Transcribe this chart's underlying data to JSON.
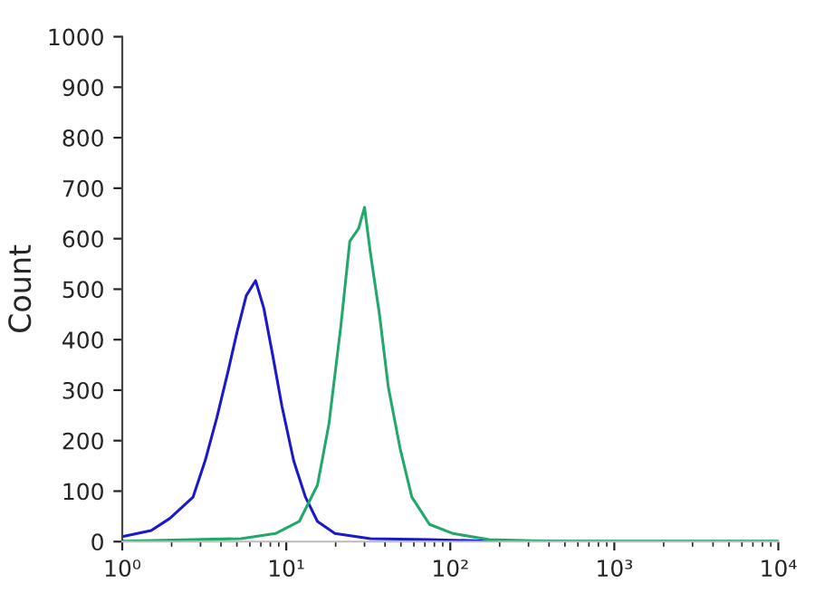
{
  "chart_data": {
    "type": "line",
    "ylabel": "Count",
    "log": "x",
    "grid": false,
    "legend": false,
    "marker": "none",
    "line_style": "solid",
    "xlim": [
      1,
      10000
    ],
    "ylim": [
      0,
      1000
    ],
    "xticks": [
      {
        "value": 1,
        "label": "10⁰"
      },
      {
        "value": 10,
        "label": "10¹"
      },
      {
        "value": 100,
        "label": "10²"
      },
      {
        "value": 1000,
        "label": "10³"
      },
      {
        "value": 10000,
        "label": "10⁴"
      }
    ],
    "yticks": [
      0,
      100,
      200,
      300,
      400,
      500,
      600,
      700,
      800,
      900,
      1000
    ],
    "series": [
      {
        "color": "#1a1acc",
        "x": [
          1,
          1.5,
          1.95,
          2.7,
          3.2,
          3.77,
          4.45,
          5.0,
          5.7,
          6.5,
          7.3,
          8.3,
          9.4,
          11.1,
          13.1,
          15.5,
          19.8,
          32.6,
          75,
          172,
          1000,
          10000
        ],
        "values": [
          10,
          22,
          46,
          88,
          160,
          245,
          342,
          414,
          487,
          517,
          462,
          366,
          269,
          160,
          88,
          40,
          16,
          6,
          4,
          1,
          0,
          0
        ]
      },
      {
        "color": "#22a86a",
        "x": [
          1,
          5.3,
          8.6,
          12,
          15.5,
          18.2,
          21.5,
          24.4,
          27.6,
          30,
          32.6,
          37,
          41.9,
          49.4,
          58.3,
          74.8,
          104,
          172,
          393,
          10000
        ],
        "values": [
          1,
          6,
          16,
          40,
          112,
          233,
          426,
          595,
          620,
          662,
          571,
          450,
          306,
          185,
          88,
          34,
          16,
          4,
          1,
          1
        ]
      }
    ]
  }
}
